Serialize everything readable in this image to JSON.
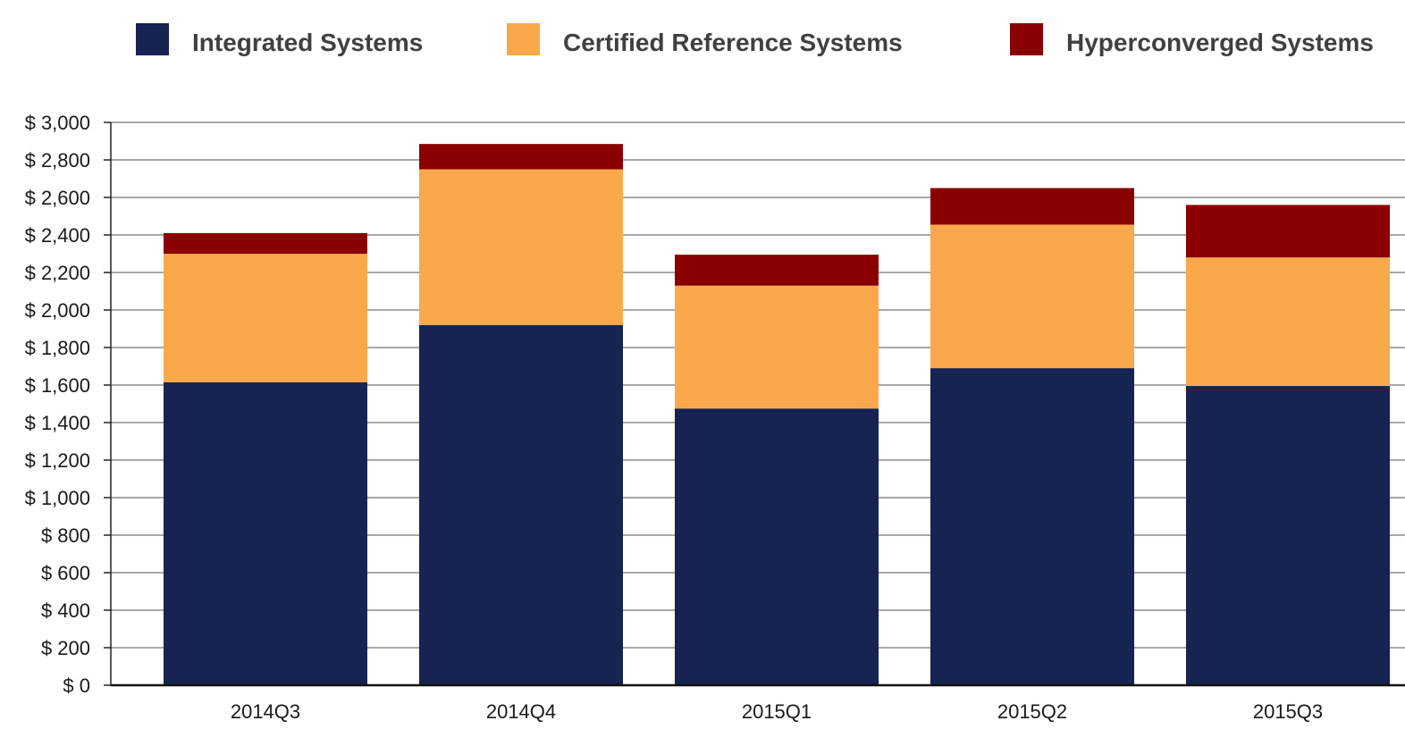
{
  "chart_data": {
    "type": "bar",
    "stacked": true,
    "categories": [
      "2014Q3",
      "2014Q4",
      "2015Q1",
      "2015Q2",
      "2015Q3"
    ],
    "series": [
      {
        "name": "Integrated Systems",
        "color": "#172350",
        "values": [
          1615,
          1920,
          1475,
          1690,
          1595
        ]
      },
      {
        "name": "Certified Reference Systems",
        "color": "#f9a94b",
        "values": [
          685,
          830,
          655,
          765,
          685
        ]
      },
      {
        "name": "Hyperconverged Systems",
        "color": "#8a0000",
        "values": [
          110,
          135,
          165,
          195,
          280
        ]
      }
    ],
    "ylim": [
      0,
      3000
    ],
    "ytick_step": 200,
    "yticks": [
      "$ 0",
      "$ 200",
      "$ 400",
      "$ 600",
      "$ 800",
      "$ 1,000",
      "$ 1,200",
      "$ 1,400",
      "$ 1,600",
      "$ 1,800",
      "$ 2,000",
      "$ 2,200",
      "$ 2,400",
      "$ 2,600",
      "$ 2,800",
      "$ 3,000"
    ],
    "grid": true,
    "legend_position": "top"
  }
}
